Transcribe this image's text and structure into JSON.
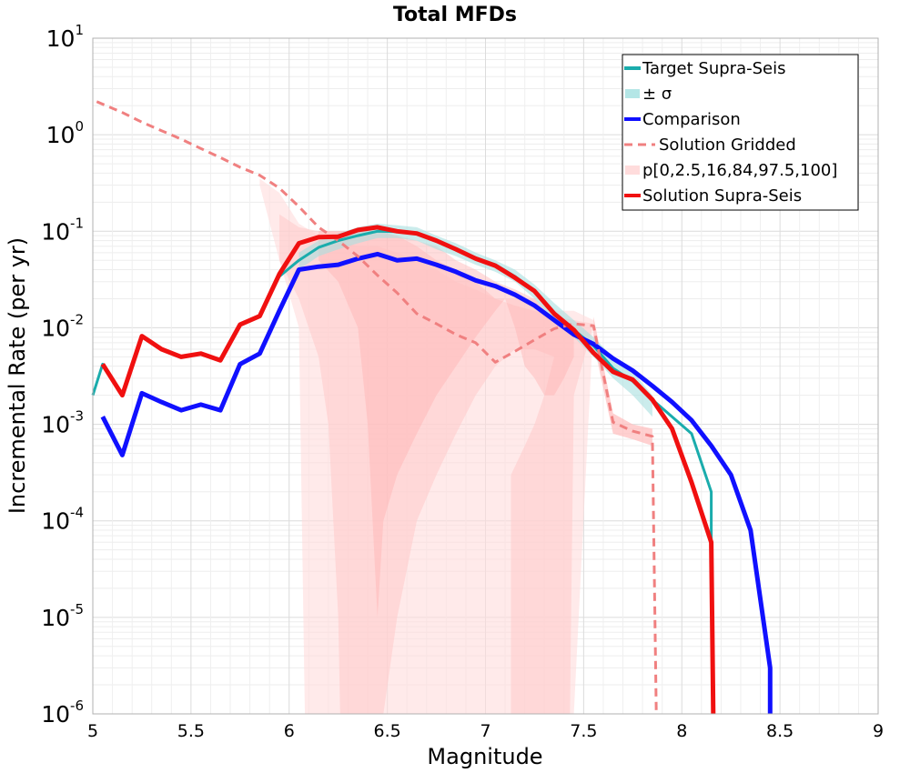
{
  "chart_data": {
    "type": "line",
    "title": "Total MFDs",
    "xlabel": "Magnitude",
    "ylabel": "Incremental Rate (per yr)",
    "xlim": [
      5,
      9
    ],
    "ylim": [
      1e-06,
      10
    ],
    "y_scale": "log",
    "grid": true,
    "legend_position": "top-right",
    "x_ticks": [
      "5",
      "5.5",
      "6",
      "6.5",
      "7",
      "7.5",
      "8",
      "8.5",
      "9"
    ],
    "y_ticks": [
      {
        "base": "10",
        "exp": "1"
      },
      {
        "base": "10",
        "exp": "0"
      },
      {
        "base": "10",
        "exp": "-1"
      },
      {
        "base": "10",
        "exp": "-2"
      },
      {
        "base": "10",
        "exp": "-3"
      },
      {
        "base": "10",
        "exp": "-4"
      },
      {
        "base": "10",
        "exp": "-5"
      },
      {
        "base": "10",
        "exp": "-6"
      }
    ],
    "legend": [
      {
        "label": "Target Supra-Seis",
        "color": "#1aacac",
        "style": "line"
      },
      {
        "label": "± σ",
        "color": "#b4e6e6",
        "style": "patch"
      },
      {
        "label": "Comparison",
        "color": "#1010ff",
        "style": "line"
      },
      {
        "label": "Solution Gridded",
        "color": "#f08080",
        "style": "dashed"
      },
      {
        "label": "p[0,2.5,16,84,97.5,100]",
        "color": "#ffdcdc",
        "style": "patch"
      },
      {
        "label": "Solution Supra-Seis",
        "color": "#f01010",
        "style": "line"
      }
    ],
    "bands": {
      "outer": [
        [
          5.85,
          0.35
        ],
        [
          5.95,
          0.25
        ],
        [
          6.05,
          0.12
        ],
        [
          6.15,
          0.09
        ],
        [
          6.25,
          0.08
        ],
        [
          6.35,
          0.07
        ],
        [
          6.45,
          0.07
        ],
        [
          6.55,
          0.06
        ],
        [
          6.65,
          0.05
        ],
        [
          6.75,
          0.04
        ],
        [
          6.85,
          0.03
        ],
        [
          6.95,
          0.025
        ],
        [
          7.05,
          0.02
        ],
        [
          7.15,
          0.02
        ],
        [
          7.25,
          0.02
        ],
        [
          7.35,
          0.015
        ],
        [
          7.45,
          0.015
        ],
        [
          7.55,
          0.012
        ],
        [
          7.45,
          1e-06
        ],
        [
          7.35,
          1e-06
        ],
        [
          7.25,
          1e-06
        ],
        [
          7.15,
          1e-06
        ],
        [
          7.05,
          1e-06
        ],
        [
          6.95,
          1e-06
        ],
        [
          6.85,
          1e-06
        ],
        [
          6.75,
          1e-06
        ],
        [
          6.65,
          1e-06
        ],
        [
          6.55,
          1e-06
        ],
        [
          6.45,
          1e-06
        ],
        [
          6.35,
          1e-06
        ],
        [
          6.25,
          1e-06
        ],
        [
          6.15,
          1e-06
        ],
        [
          6.08,
          1e-06
        ],
        [
          6.05,
          0.01
        ],
        [
          5.95,
          0.05
        ],
        [
          5.85,
          0.3
        ]
      ],
      "middle": [
        [
          5.95,
          0.15
        ],
        [
          6.05,
          0.11
        ],
        [
          6.15,
          0.1
        ],
        [
          6.25,
          0.1
        ],
        [
          6.35,
          0.1
        ],
        [
          6.45,
          0.1
        ],
        [
          6.55,
          0.09
        ],
        [
          6.65,
          0.07
        ],
        [
          6.75,
          0.05
        ],
        [
          6.85,
          0.04
        ],
        [
          6.95,
          0.03
        ],
        [
          7.05,
          0.02
        ],
        [
          7.15,
          0.017
        ],
        [
          7.25,
          0.015
        ],
        [
          7.35,
          0.013
        ],
        [
          7.45,
          0.012
        ],
        [
          7.55,
          0.011
        ],
        [
          7.45,
          0.002
        ],
        [
          7.43,
          1e-06
        ],
        [
          7.13,
          1e-06
        ],
        [
          7.13,
          0.0003
        ],
        [
          7.2,
          0.0006
        ],
        [
          7.25,
          0.001
        ],
        [
          7.3,
          0.002
        ],
        [
          7.35,
          0.005
        ],
        [
          7.25,
          0.006
        ],
        [
          7.15,
          0.006
        ],
        [
          7.05,
          0.004
        ],
        [
          6.95,
          0.002
        ],
        [
          6.85,
          0.0008
        ],
        [
          6.75,
          0.0003
        ],
        [
          6.65,
          0.0001
        ],
        [
          6.55,
          1e-05
        ],
        [
          6.48,
          1e-06
        ],
        [
          6.26,
          1e-06
        ],
        [
          6.25,
          1e-05
        ],
        [
          6.2,
          0.001
        ],
        [
          6.15,
          0.005
        ],
        [
          6.05,
          0.02
        ],
        [
          5.95,
          0.05
        ]
      ],
      "inner": [
        [
          6.15,
          0.1
        ],
        [
          6.25,
          0.1
        ],
        [
          6.35,
          0.1
        ],
        [
          6.45,
          0.1
        ],
        [
          6.55,
          0.09
        ],
        [
          6.65,
          0.08
        ],
        [
          6.75,
          0.07
        ],
        [
          6.85,
          0.05
        ],
        [
          6.95,
          0.04
        ],
        [
          7.05,
          0.03
        ],
        [
          7.15,
          0.025
        ],
        [
          7.25,
          0.02
        ],
        [
          7.35,
          0.012
        ],
        [
          7.45,
          0.011
        ],
        [
          7.45,
          0.005
        ],
        [
          7.4,
          0.003
        ],
        [
          7.35,
          0.002
        ],
        [
          7.3,
          0.002
        ],
        [
          7.25,
          0.003
        ],
        [
          7.2,
          0.004
        ],
        [
          7.15,
          0.01
        ],
        [
          7.1,
          0.02
        ],
        [
          7.05,
          0.015
        ],
        [
          6.95,
          0.008
        ],
        [
          6.85,
          0.004
        ],
        [
          6.75,
          0.002
        ],
        [
          6.65,
          0.0008
        ],
        [
          6.55,
          0.0003
        ],
        [
          6.48,
          0.0001
        ],
        [
          6.45,
          1e-05
        ],
        [
          6.4,
          0.001
        ],
        [
          6.35,
          0.01
        ],
        [
          6.25,
          0.03
        ],
        [
          6.15,
          0.05
        ]
      ],
      "gridded_sigma": [
        [
          7.55,
          0.013
        ],
        [
          7.65,
          0.0013
        ],
        [
          7.75,
          0.001
        ],
        [
          7.85,
          0.0009
        ],
        [
          7.85,
          0.0006
        ],
        [
          7.75,
          0.0007
        ],
        [
          7.65,
          0.0008
        ],
        [
          7.55,
          0.007
        ]
      ],
      "target_sigma": [
        [
          6.05,
          0.06
        ],
        [
          6.15,
          0.08
        ],
        [
          6.25,
          0.095
        ],
        [
          6.35,
          0.11
        ],
        [
          6.45,
          0.12
        ],
        [
          6.55,
          0.115
        ],
        [
          6.65,
          0.11
        ],
        [
          6.75,
          0.09
        ],
        [
          6.85,
          0.075
        ],
        [
          6.95,
          0.06
        ],
        [
          7.05,
          0.05
        ],
        [
          7.15,
          0.04
        ],
        [
          7.25,
          0.028
        ],
        [
          7.35,
          0.018
        ],
        [
          7.45,
          0.012
        ],
        [
          7.55,
          0.008
        ],
        [
          7.65,
          0.005
        ],
        [
          7.75,
          0.0035
        ],
        [
          7.85,
          0.002
        ],
        [
          7.85,
          0.0012
        ],
        [
          7.75,
          0.002
        ],
        [
          7.65,
          0.003
        ],
        [
          7.55,
          0.005
        ],
        [
          7.45,
          0.008
        ],
        [
          7.35,
          0.012
        ],
        [
          7.25,
          0.02
        ],
        [
          7.15,
          0.03
        ],
        [
          7.05,
          0.038
        ],
        [
          6.95,
          0.045
        ],
        [
          6.85,
          0.055
        ],
        [
          6.75,
          0.065
        ],
        [
          6.65,
          0.08
        ],
        [
          6.55,
          0.085
        ],
        [
          6.45,
          0.085
        ],
        [
          6.35,
          0.075
        ],
        [
          6.25,
          0.065
        ],
        [
          6.15,
          0.055
        ],
        [
          6.05,
          0.04
        ]
      ]
    },
    "series": [
      {
        "name": "Target Supra-Seis",
        "color": "#1aacac",
        "width": 3,
        "dash": false,
        "x": [
          5.0,
          5.05,
          5.15,
          5.25,
          5.35,
          5.45,
          5.55,
          5.65,
          5.75,
          5.85,
          5.95,
          6.05,
          6.15,
          6.25,
          6.35,
          6.45,
          6.55,
          6.65,
          6.75,
          6.85,
          6.95,
          7.05,
          7.15,
          7.25,
          7.35,
          7.45,
          7.55,
          7.65,
          7.75,
          7.85,
          7.95,
          8.05,
          8.15,
          8.15
        ],
        "y": [
          0.002,
          0.0042,
          0.002,
          0.0082,
          0.006,
          0.005,
          0.0054,
          0.0046,
          0.0108,
          0.0132,
          0.034,
          0.05,
          0.068,
          0.08,
          0.09,
          0.1,
          0.099,
          0.095,
          0.08,
          0.065,
          0.053,
          0.045,
          0.034,
          0.024,
          0.014,
          0.0095,
          0.0065,
          0.0038,
          0.0028,
          0.0018,
          0.0012,
          0.0008,
          0.0002,
          6e-05
        ]
      },
      {
        "name": "Comparison",
        "color": "#1010ff",
        "width": 5,
        "dash": false,
        "x": [
          5.05,
          5.15,
          5.25,
          5.35,
          5.45,
          5.55,
          5.65,
          5.75,
          5.85,
          5.95,
          6.05,
          6.15,
          6.25,
          6.35,
          6.45,
          6.55,
          6.65,
          6.75,
          6.85,
          6.95,
          7.05,
          7.15,
          7.25,
          7.35,
          7.45,
          7.55,
          7.65,
          7.75,
          7.85,
          7.95,
          8.05,
          8.15,
          8.25,
          8.35,
          8.45,
          8.45
        ],
        "y": [
          0.0012,
          0.00048,
          0.0021,
          0.0017,
          0.0014,
          0.0016,
          0.0014,
          0.0042,
          0.0054,
          0.015,
          0.04,
          0.043,
          0.045,
          0.052,
          0.058,
          0.05,
          0.052,
          0.045,
          0.038,
          0.031,
          0.027,
          0.022,
          0.017,
          0.012,
          0.0085,
          0.0068,
          0.0048,
          0.0036,
          0.0025,
          0.0017,
          0.0011,
          0.0006,
          0.0003,
          8e-05,
          3e-06,
          1e-06
        ]
      },
      {
        "name": "Solution Gridded",
        "color": "#f08080",
        "width": 3,
        "dash": true,
        "x": [
          5.02,
          5.15,
          5.25,
          5.35,
          5.45,
          5.55,
          5.65,
          5.75,
          5.85,
          5.95,
          6.05,
          6.15,
          6.25,
          6.35,
          6.45,
          6.55,
          6.65,
          6.75,
          6.85,
          6.95,
          7.05,
          7.15,
          7.25,
          7.35,
          7.45,
          7.55,
          7.65,
          7.75,
          7.85,
          7.87
        ],
        "y": [
          2.2,
          1.7,
          1.35,
          1.1,
          0.9,
          0.72,
          0.58,
          0.46,
          0.38,
          0.28,
          0.18,
          0.11,
          0.08,
          0.055,
          0.035,
          0.023,
          0.014,
          0.011,
          0.0085,
          0.007,
          0.0044,
          0.0057,
          0.0075,
          0.0098,
          0.011,
          0.0105,
          0.00105,
          0.00085,
          0.00075,
          1e-06
        ]
      },
      {
        "name": "Solution Supra-Seis",
        "color": "#f01010",
        "width": 5,
        "dash": false,
        "x": [
          5.05,
          5.15,
          5.25,
          5.35,
          5.45,
          5.55,
          5.65,
          5.75,
          5.85,
          5.95,
          6.05,
          6.15,
          6.25,
          6.35,
          6.45,
          6.55,
          6.65,
          6.75,
          6.85,
          6.95,
          7.05,
          7.15,
          7.25,
          7.35,
          7.45,
          7.55,
          7.65,
          7.75,
          7.85,
          7.95,
          8.05,
          8.15,
          8.16
        ],
        "y": [
          0.0042,
          0.002,
          0.0082,
          0.006,
          0.005,
          0.0054,
          0.0046,
          0.0108,
          0.0132,
          0.036,
          0.075,
          0.087,
          0.088,
          0.103,
          0.11,
          0.1,
          0.095,
          0.08,
          0.065,
          0.052,
          0.044,
          0.033,
          0.024,
          0.014,
          0.0095,
          0.0055,
          0.0035,
          0.0029,
          0.0018,
          0.0009,
          0.00025,
          6e-05,
          1e-06
        ]
      }
    ]
  }
}
